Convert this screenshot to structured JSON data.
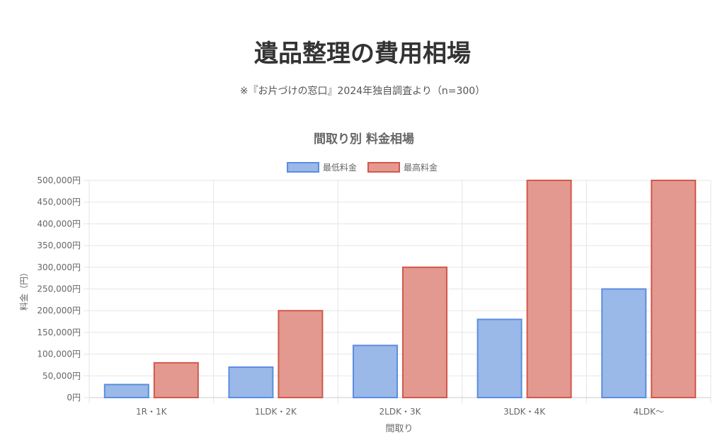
{
  "page": {
    "title": "遺品整理の費用相場",
    "subtitle": "※『お片づけの窓口』2024年独自調査より（n=300）"
  },
  "chart_data": {
    "type": "bar",
    "title": "間取り別 料金相場",
    "xlabel": "間取り",
    "ylabel": "料金（円）",
    "categories": [
      "1R・1K",
      "1LDK・2K",
      "2LDK・3K",
      "3LDK・4K",
      "4LDK〜"
    ],
    "series": [
      {
        "name": "最低料金",
        "values": [
          30000,
          70000,
          120000,
          180000,
          250000
        ],
        "fill": "#9ab8e8",
        "stroke": "#5b8ee0"
      },
      {
        "name": "最高料金",
        "values": [
          80000,
          200000,
          300000,
          500000,
          500000
        ],
        "fill": "#e39990",
        "stroke": "#d2584c"
      }
    ],
    "ylim": [
      0,
      500000
    ],
    "y_step": 50000,
    "y_tick_suffix": "円",
    "grid": true,
    "legend_position": "top"
  }
}
